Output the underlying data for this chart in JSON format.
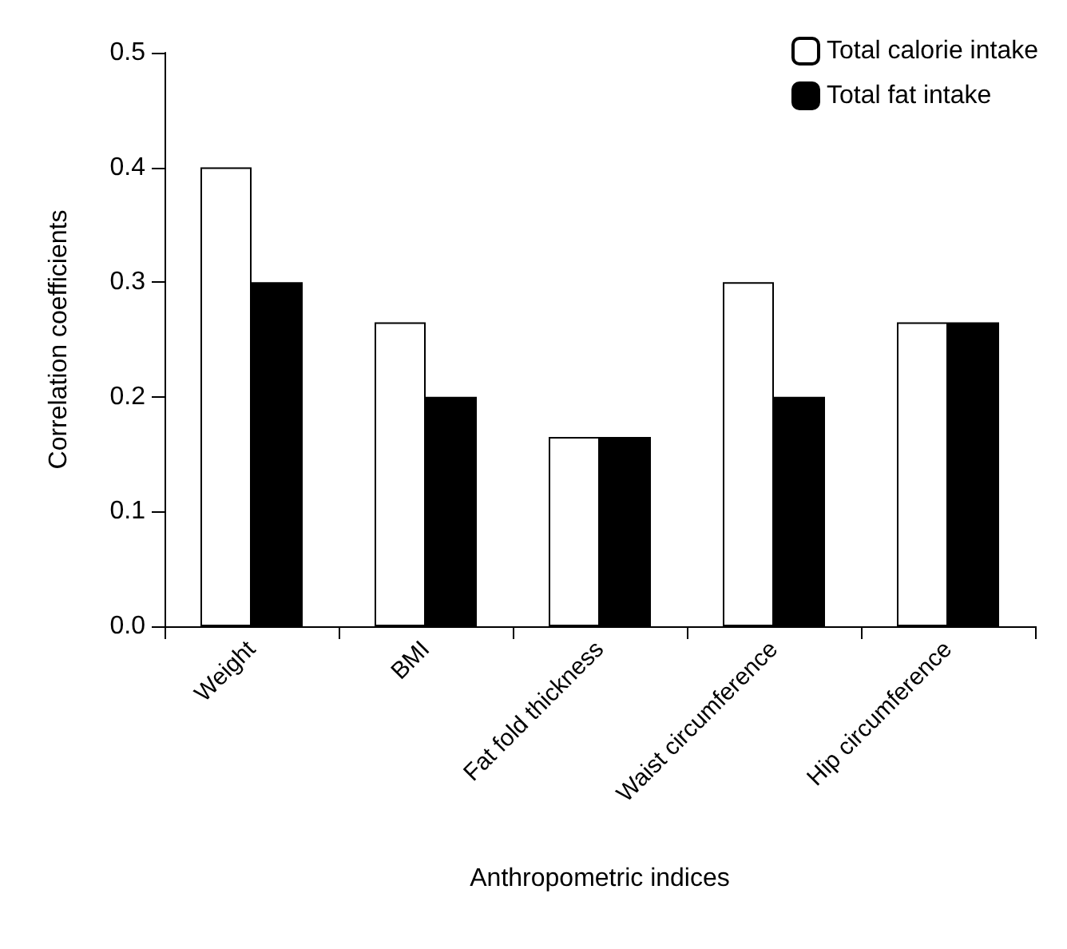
{
  "chart_data": {
    "type": "bar",
    "xlabel": "Anthropometric indices",
    "ylabel": "Correlation coefficients",
    "categories": [
      "Weight",
      "BMI",
      "Fat fold thickness",
      "Waist circumference",
      "Hip circumference"
    ],
    "series": [
      {
        "name": "Total calorie intake",
        "color": "#ffffff",
        "values": [
          0.4,
          0.265,
          0.165,
          0.3,
          0.265
        ]
      },
      {
        "name": "Total fat intake",
        "color": "#000000",
        "values": [
          0.3,
          0.2,
          0.165,
          0.2,
          0.265
        ]
      }
    ],
    "ylim": [
      0,
      0.5
    ],
    "yticks": [
      "0.0",
      0.1,
      0.2,
      0.3,
      0.4,
      0.5
    ],
    "grid": false,
    "legend": "top right"
  }
}
